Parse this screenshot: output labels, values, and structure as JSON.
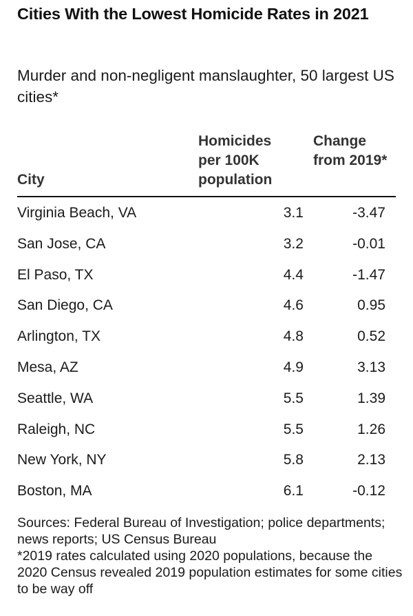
{
  "chart_data": {
    "type": "table",
    "title": "Cities With the Lowest Homicide Rates in 2021",
    "subtitle": "Murder and non-negligent manslaughter, 50 largest US cities*",
    "columns": {
      "city": "City",
      "rate": "Homicides per 100K population",
      "change": "Change from 2019*"
    },
    "rows": [
      {
        "city": "Virginia Beach, VA",
        "rate": "3.1",
        "change": "-3.47"
      },
      {
        "city": "San Jose, CA",
        "rate": "3.2",
        "change": "-0.01"
      },
      {
        "city": "El Paso, TX",
        "rate": "4.4",
        "change": "-1.47"
      },
      {
        "city": "San Diego, CA",
        "rate": "4.6",
        "change": "0.95"
      },
      {
        "city": "Arlington, TX",
        "rate": "4.8",
        "change": "0.52"
      },
      {
        "city": "Mesa, AZ",
        "rate": "4.9",
        "change": "3.13"
      },
      {
        "city": "Seattle, WA",
        "rate": "5.5",
        "change": "1.39"
      },
      {
        "city": "Raleigh, NC",
        "rate": "5.5",
        "change": "1.26"
      },
      {
        "city": "New York, NY",
        "rate": "5.8",
        "change": "2.13"
      },
      {
        "city": "Boston, MA",
        "rate": "6.1",
        "change": "-0.12"
      }
    ],
    "sources": "Sources: Federal Bureau of Investigation; police departments; news reports; US Census Bureau",
    "footnote": "*2019 rates calculated using 2020 populations, because the 2020 Census revealed 2019 population estimates for some cities to be way off"
  }
}
